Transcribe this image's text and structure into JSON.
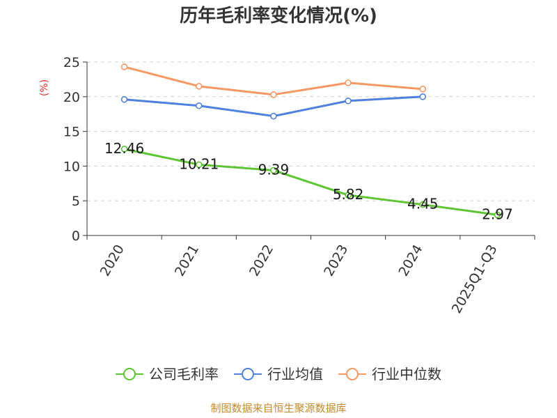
{
  "chart_data": {
    "type": "line",
    "title": "历年毛利率变化情况(%)",
    "ylabel": "(%)",
    "xlabel": "",
    "categories": [
      "2020",
      "2021",
      "2022",
      "2023",
      "2024",
      "2025Q1-Q3"
    ],
    "ylim": [
      0,
      25
    ],
    "yticks": [
      0,
      5,
      10,
      15,
      20,
      25
    ],
    "grid": true,
    "legend_position": "bottom",
    "series": [
      {
        "name": "公司毛利率",
        "color": "#5cc531",
        "values": [
          12.46,
          10.21,
          9.39,
          5.82,
          4.45,
          2.97
        ],
        "labels": [
          "12.46",
          "10.21",
          "9.39",
          "5.82",
          "4.45",
          "2.97"
        ]
      },
      {
        "name": "行业均值",
        "color": "#4e80e0",
        "values": [
          19.6,
          18.7,
          17.2,
          19.4,
          20.0,
          null
        ]
      },
      {
        "name": "行业中位数",
        "color": "#f79863",
        "values": [
          24.3,
          21.5,
          20.3,
          22.0,
          21.1,
          null
        ]
      }
    ],
    "source": "制图数据来自恒生聚源数据库",
    "colors": {
      "ylabel": "#e0312e",
      "source": "#c68a2f",
      "axis": "#333333",
      "grid": "#cfcfcf"
    }
  }
}
